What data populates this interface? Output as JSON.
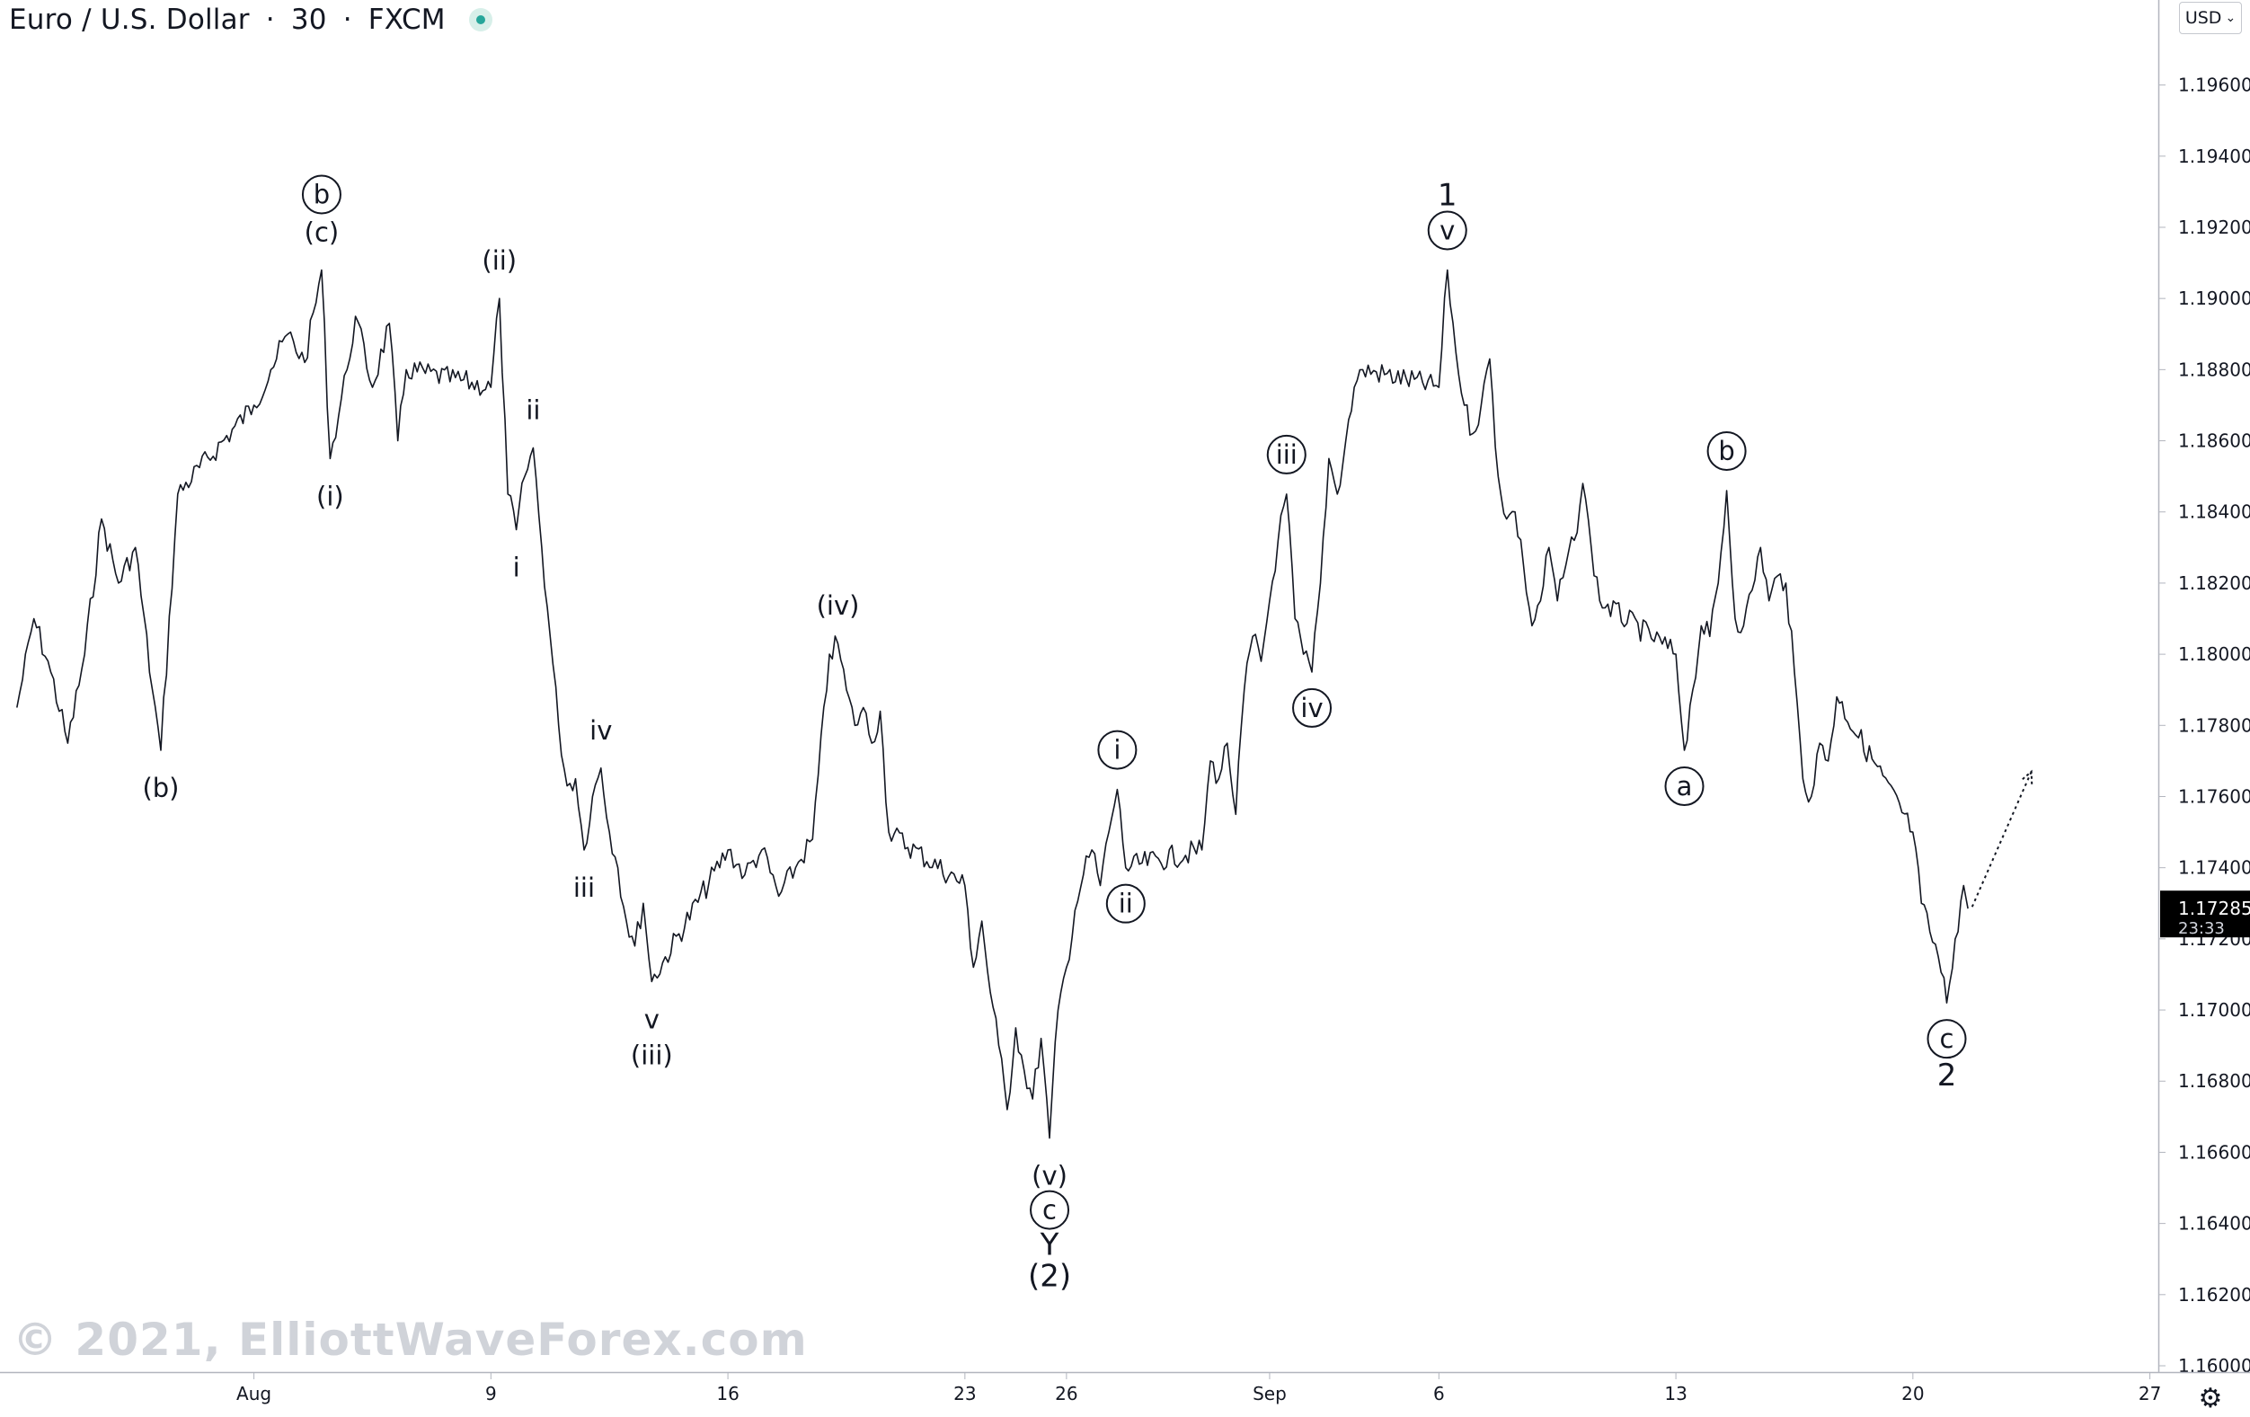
{
  "header": {
    "symbol": "Euro / U.S. Dollar",
    "separator": "·",
    "timeframe": "30",
    "exchange": "FXCM"
  },
  "toolbar": {
    "currency_label": "USD"
  },
  "watermark": "© 2021, ElliottWaveForex.com",
  "icons": {
    "status": "status-dot-icon",
    "settings": "gear-icon",
    "currency_dropdown": "chevron-down-icon"
  },
  "colors": {
    "candles": "#131722",
    "status": "#26a69a",
    "price_badge": "#000000",
    "watermark": "#d0d3d9"
  },
  "chart_data": {
    "type": "line",
    "title": "",
    "ylim": [
      1.16,
      1.197
    ],
    "y_ticks": [
      "1.19600",
      "1.19400",
      "1.19200",
      "1.19000",
      "1.18800",
      "1.18600",
      "1.18400",
      "1.18200",
      "1.18000",
      "1.17800",
      "1.17600",
      "1.17400",
      "1.17200",
      "1.17000",
      "1.16800",
      "1.16600",
      "1.16400",
      "1.16200",
      "1.16000"
    ],
    "y_tick_values": [
      1.196,
      1.194,
      1.192,
      1.19,
      1.188,
      1.186,
      1.184,
      1.182,
      1.18,
      1.178,
      1.176,
      1.174,
      1.172,
      1.17,
      1.168,
      1.166,
      1.164,
      1.162,
      1.16
    ],
    "x_ticks": [
      {
        "label": "Aug",
        "date": "2021-08-02"
      },
      {
        "label": "9",
        "date": "2021-08-09"
      },
      {
        "label": "16",
        "date": "2021-08-16"
      },
      {
        "label": "23",
        "date": "2021-08-23"
      },
      {
        "label": "26",
        "date": "2021-08-26"
      },
      {
        "label": "Sep",
        "date": "2021-09-01"
      },
      {
        "label": "6",
        "date": "2021-09-06"
      },
      {
        "label": "13",
        "date": "2021-09-13"
      },
      {
        "label": "20",
        "date": "2021-09-20"
      },
      {
        "label": "27",
        "date": "2021-09-27"
      }
    ],
    "series": [
      {
        "points": [
          [
            "2021-07-26 00:00",
            1.1785
          ],
          [
            "2021-07-26 12:00",
            1.181
          ],
          [
            "2021-07-27 00:00",
            1.1795
          ],
          [
            "2021-07-27 12:00",
            1.1775
          ],
          [
            "2021-07-28 00:00",
            1.18
          ],
          [
            "2021-07-28 12:00",
            1.1838
          ],
          [
            "2021-07-29 00:00",
            1.182
          ],
          [
            "2021-07-29 12:00",
            1.183
          ],
          [
            "2021-07-30 00:00",
            1.179
          ],
          [
            "2021-07-30 06:00",
            1.1773
          ],
          [
            "2021-07-30 18:00",
            1.1845
          ],
          [
            "2021-08-02 00:00",
            1.187
          ],
          [
            "2021-08-02 12:00",
            1.188
          ],
          [
            "2021-08-03 00:00",
            1.189
          ],
          [
            "2021-08-03 12:00",
            1.1882
          ],
          [
            "2021-08-04 00:00",
            1.1908
          ],
          [
            "2021-08-04 06:00",
            1.1855
          ],
          [
            "2021-08-04 18:00",
            1.188
          ],
          [
            "2021-08-05 00:00",
            1.1895
          ],
          [
            "2021-08-05 12:00",
            1.1875
          ],
          [
            "2021-08-06 00:00",
            1.1893
          ],
          [
            "2021-08-06 06:00",
            1.186
          ],
          [
            "2021-08-06 12:00",
            1.188
          ],
          [
            "2021-08-09 00:00",
            1.1875
          ],
          [
            "2021-08-09 06:00",
            1.19
          ],
          [
            "2021-08-09 12:00",
            1.1845
          ],
          [
            "2021-08-09 18:00",
            1.1835
          ],
          [
            "2021-08-10 00:00",
            1.185
          ],
          [
            "2021-08-10 06:00",
            1.1858
          ],
          [
            "2021-08-10 12:00",
            1.183
          ],
          [
            "2021-08-10 18:00",
            1.1805
          ],
          [
            "2021-08-11 00:00",
            1.178
          ],
          [
            "2021-08-11 06:00",
            1.1763
          ],
          [
            "2021-08-11 12:00",
            1.1765
          ],
          [
            "2021-08-11 18:00",
            1.1745
          ],
          [
            "2021-08-12 00:00",
            1.176
          ],
          [
            "2021-08-12 06:00",
            1.1768
          ],
          [
            "2021-08-12 12:00",
            1.175
          ],
          [
            "2021-08-12 18:00",
            1.174
          ],
          [
            "2021-08-13 00:00",
            1.1725
          ],
          [
            "2021-08-13 06:00",
            1.1718
          ],
          [
            "2021-08-13 12:00",
            1.173
          ],
          [
            "2021-08-13 18:00",
            1.1708
          ],
          [
            "2021-08-16 00:00",
            1.1745
          ],
          [
            "2021-08-16 12:00",
            1.1738
          ],
          [
            "2021-08-17 00:00",
            1.1745
          ],
          [
            "2021-08-17 12:00",
            1.1732
          ],
          [
            "2021-08-18 00:00",
            1.174
          ],
          [
            "2021-08-18 12:00",
            1.1748
          ],
          [
            "2021-08-19 00:00",
            1.18
          ],
          [
            "2021-08-19 06:00",
            1.1803
          ],
          [
            "2021-08-19 12:00",
            1.179
          ],
          [
            "2021-08-19 18:00",
            1.178
          ],
          [
            "2021-08-20 00:00",
            1.1785
          ],
          [
            "2021-08-20 06:00",
            1.1775
          ],
          [
            "2021-08-20 12:00",
            1.1784
          ],
          [
            "2021-08-20 18:00",
            1.175
          ],
          [
            "2021-08-23 00:00",
            1.1735
          ],
          [
            "2021-08-23 06:00",
            1.1712
          ],
          [
            "2021-08-23 12:00",
            1.1725
          ],
          [
            "2021-08-23 18:00",
            1.1705
          ],
          [
            "2021-08-24 00:00",
            1.169
          ],
          [
            "2021-08-24 06:00",
            1.1672
          ],
          [
            "2021-08-24 12:00",
            1.1695
          ],
          [
            "2021-08-24 18:00",
            1.1683
          ],
          [
            "2021-08-25 00:00",
            1.1675
          ],
          [
            "2021-08-25 06:00",
            1.1692
          ],
          [
            "2021-08-25 12:00",
            1.1664
          ],
          [
            "2021-08-25 18:00",
            1.17
          ],
          [
            "2021-08-26 00:00",
            1.1712
          ],
          [
            "2021-08-26 06:00",
            1.1728
          ],
          [
            "2021-08-26 12:00",
            1.1738
          ],
          [
            "2021-08-26 18:00",
            1.1745
          ],
          [
            "2021-08-27 00:00",
            1.1735
          ],
          [
            "2021-08-27 06:00",
            1.175
          ],
          [
            "2021-08-27 12:00",
            1.1762
          ],
          [
            "2021-08-27 18:00",
            1.174
          ],
          [
            "2021-08-30 00:00",
            1.1745
          ],
          [
            "2021-08-30 06:00",
            1.177
          ],
          [
            "2021-08-30 12:00",
            1.1765
          ],
          [
            "2021-08-30 18:00",
            1.1775
          ],
          [
            "2021-08-31 00:00",
            1.1755
          ],
          [
            "2021-08-31 06:00",
            1.179
          ],
          [
            "2021-08-31 12:00",
            1.1805
          ],
          [
            "2021-08-31 18:00",
            1.1798
          ],
          [
            "2021-09-01 00:00",
            1.1815
          ],
          [
            "2021-09-01 06:00",
            1.1832
          ],
          [
            "2021-09-01 12:00",
            1.1845
          ],
          [
            "2021-09-01 18:00",
            1.181
          ],
          [
            "2021-09-02 00:00",
            1.18
          ],
          [
            "2021-09-02 06:00",
            1.1795
          ],
          [
            "2021-09-02 12:00",
            1.182
          ],
          [
            "2021-09-02 18:00",
            1.1855
          ],
          [
            "2021-09-03 00:00",
            1.1845
          ],
          [
            "2021-09-03 06:00",
            1.186
          ],
          [
            "2021-09-03 12:00",
            1.1875
          ],
          [
            "2021-09-03 18:00",
            1.188
          ],
          [
            "2021-09-06 00:00",
            1.1875
          ],
          [
            "2021-09-06 06:00",
            1.1908
          ],
          [
            "2021-09-06 12:00",
            1.1885
          ],
          [
            "2021-09-06 18:00",
            1.187
          ],
          [
            "2021-09-07 00:00",
            1.1862
          ],
          [
            "2021-09-07 06:00",
            1.187
          ],
          [
            "2021-09-07 12:00",
            1.1883
          ],
          [
            "2021-09-07 18:00",
            1.185
          ],
          [
            "2021-09-08 00:00",
            1.1838
          ],
          [
            "2021-09-08 06:00",
            1.184
          ],
          [
            "2021-09-08 12:00",
            1.1825
          ],
          [
            "2021-09-08 18:00",
            1.1808
          ],
          [
            "2021-09-09 00:00",
            1.1815
          ],
          [
            "2021-09-09 06:00",
            1.183
          ],
          [
            "2021-09-09 12:00",
            1.1815
          ],
          [
            "2021-09-09 18:00",
            1.1825
          ],
          [
            "2021-09-10 00:00",
            1.1832
          ],
          [
            "2021-09-10 06:00",
            1.1848
          ],
          [
            "2021-09-10 12:00",
            1.183
          ],
          [
            "2021-09-10 18:00",
            1.1815
          ],
          [
            "2021-09-13 00:00",
            1.18
          ],
          [
            "2021-09-13 06:00",
            1.1773
          ],
          [
            "2021-09-13 12:00",
            1.179
          ],
          [
            "2021-09-13 18:00",
            1.1808
          ],
          [
            "2021-09-14 00:00",
            1.1805
          ],
          [
            "2021-09-14 06:00",
            1.182
          ],
          [
            "2021-09-14 12:00",
            1.1846
          ],
          [
            "2021-09-14 18:00",
            1.181
          ],
          [
            "2021-09-15 00:00",
            1.1808
          ],
          [
            "2021-09-15 06:00",
            1.1818
          ],
          [
            "2021-09-15 12:00",
            1.183
          ],
          [
            "2021-09-15 18:00",
            1.1815
          ],
          [
            "2021-09-16 00:00",
            1.1822
          ],
          [
            "2021-09-16 06:00",
            1.182
          ],
          [
            "2021-09-16 12:00",
            1.1795
          ],
          [
            "2021-09-16 18:00",
            1.1765
          ],
          [
            "2021-09-17 00:00",
            1.176
          ],
          [
            "2021-09-17 06:00",
            1.1775
          ],
          [
            "2021-09-17 12:00",
            1.177
          ],
          [
            "2021-09-17 18:00",
            1.1788
          ],
          [
            "2021-09-20 00:00",
            1.175
          ],
          [
            "2021-09-20 06:00",
            1.173
          ],
          [
            "2021-09-20 12:00",
            1.1722
          ],
          [
            "2021-09-20 18:00",
            1.1715
          ],
          [
            "2021-09-21 00:00",
            1.1702
          ],
          [
            "2021-09-21 06:00",
            1.172
          ],
          [
            "2021-09-21 12:00",
            1.1735
          ],
          [
            "2021-09-21 15:00",
            1.17285
          ]
        ]
      }
    ],
    "projection": {
      "from": [
        "2021-09-21 18:00",
        1.1729
      ],
      "to": [
        "2021-09-23 12:00",
        1.1767
      ],
      "style": "dotted",
      "arrow": true
    },
    "last_price": {
      "value": "1.17285",
      "countdown": "23:33"
    },
    "annotations": [
      {
        "text": "(b)",
        "date": "2021-07-30 06:00",
        "price": 1.1773,
        "pos": "below"
      },
      {
        "text": "b",
        "date": "2021-08-04 00:00",
        "price": 1.1908,
        "pos": "above2",
        "circled": true
      },
      {
        "text": "(c)",
        "date": "2021-08-04 00:00",
        "price": 1.1908,
        "pos": "above"
      },
      {
        "text": "(i)",
        "date": "2021-08-04 06:00",
        "price": 1.1855,
        "pos": "below"
      },
      {
        "text": "(ii)",
        "date": "2021-08-09 06:00",
        "price": 1.19,
        "pos": "above"
      },
      {
        "text": "ii",
        "date": "2021-08-10 06:00",
        "price": 1.1858,
        "pos": "above"
      },
      {
        "text": "i",
        "date": "2021-08-09 18:00",
        "price": 1.1835,
        "pos": "below"
      },
      {
        "text": "iv",
        "date": "2021-08-12 06:00",
        "price": 1.1768,
        "pos": "above"
      },
      {
        "text": "iii",
        "date": "2021-08-11 18:00",
        "price": 1.1745,
        "pos": "below"
      },
      {
        "text": "v",
        "date": "2021-08-13 18:00",
        "price": 1.1708,
        "pos": "below"
      },
      {
        "text": "(iii)",
        "date": "2021-08-13 18:00",
        "price": 1.1708,
        "pos": "below2"
      },
      {
        "text": "(iv)",
        "date": "2021-08-19 06:00",
        "price": 1.1803,
        "pos": "above"
      },
      {
        "text": "(v)",
        "date": "2021-08-25 12:00",
        "price": 1.1664,
        "pos": "below"
      },
      {
        "text": "c",
        "date": "2021-08-25 12:00",
        "price": 1.1664,
        "pos": "below2",
        "circled": true
      },
      {
        "text": "Y",
        "date": "2021-08-25 12:00",
        "price": 1.1664,
        "pos": "below3"
      },
      {
        "text": "(2)",
        "date": "2021-08-25 12:00",
        "price": 1.1664,
        "pos": "below4"
      },
      {
        "text": "i",
        "date": "2021-08-27 12:00",
        "price": 1.1762,
        "pos": "above",
        "circled": true
      },
      {
        "text": "ii",
        "date": "2021-08-27 18:00",
        "price": 1.174,
        "pos": "below",
        "circled": true
      },
      {
        "text": "iii",
        "date": "2021-09-01 12:00",
        "price": 1.1845,
        "pos": "above",
        "circled": true
      },
      {
        "text": "iv",
        "date": "2021-09-02 06:00",
        "price": 1.1795,
        "pos": "below",
        "circled": true
      },
      {
        "text": "v",
        "date": "2021-09-06 06:00",
        "price": 1.1908,
        "pos": "above",
        "circled": true
      },
      {
        "text": "1",
        "date": "2021-09-06 06:00",
        "price": 1.1908,
        "pos": "above2"
      },
      {
        "text": "a",
        "date": "2021-09-13 06:00",
        "price": 1.1773,
        "pos": "below",
        "circled": true
      },
      {
        "text": "b",
        "date": "2021-09-14 12:00",
        "price": 1.1846,
        "pos": "above",
        "circled": true
      },
      {
        "text": "c",
        "date": "2021-09-21 00:00",
        "price": 1.1702,
        "pos": "below",
        "circled": true
      },
      {
        "text": "2",
        "date": "2021-09-21 00:00",
        "price": 1.1702,
        "pos": "below2"
      }
    ]
  }
}
